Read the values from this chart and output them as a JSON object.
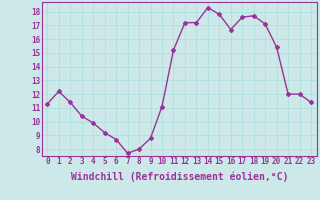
{
  "x": [
    0,
    1,
    2,
    3,
    4,
    5,
    6,
    7,
    8,
    9,
    10,
    11,
    12,
    13,
    14,
    15,
    16,
    17,
    18,
    19,
    20,
    21,
    22,
    23
  ],
  "y": [
    11.3,
    12.2,
    11.4,
    10.4,
    9.9,
    9.2,
    8.7,
    7.7,
    8.0,
    8.8,
    11.1,
    15.2,
    17.2,
    17.2,
    18.3,
    17.8,
    16.7,
    17.6,
    17.7,
    17.1,
    15.4,
    12.0,
    12.0,
    11.4
  ],
  "line_color": "#993399",
  "marker": "D",
  "marker_size": 2,
  "line_width": 1.0,
  "xlabel": "Windchill (Refroidissement éolien,°C)",
  "xlabel_fontsize": 7,
  "ylim_min": 7.5,
  "ylim_max": 18.7,
  "xlim_min": -0.5,
  "xlim_max": 23.5,
  "yticks": [
    8,
    9,
    10,
    11,
    12,
    13,
    14,
    15,
    16,
    17,
    18
  ],
  "xticks": [
    0,
    1,
    2,
    3,
    4,
    5,
    6,
    7,
    8,
    9,
    10,
    11,
    12,
    13,
    14,
    15,
    16,
    17,
    18,
    19,
    20,
    21,
    22,
    23
  ],
  "grid_color": "#aadddd",
  "background_color": "#cce8e8",
  "tick_color": "#993399",
  "tick_fontsize": 5.5,
  "xlabel_color": "#993399",
  "xlabel_fontweight": "bold"
}
